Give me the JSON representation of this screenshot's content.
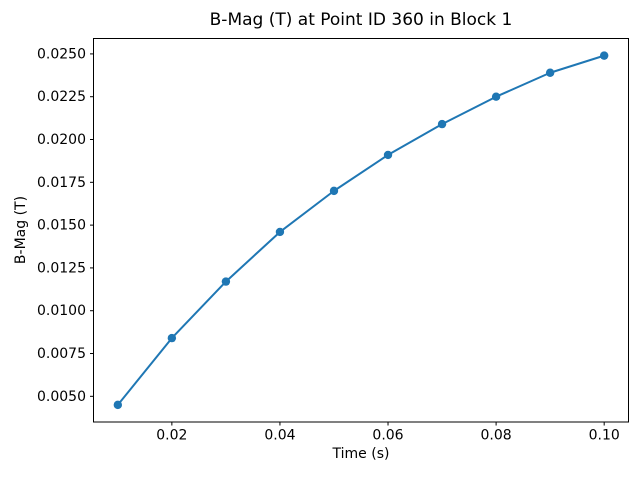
{
  "chart_data": {
    "type": "line",
    "title": "B-Mag (T) at Point ID 360 in Block 1",
    "xlabel": "Time (s)",
    "ylabel": "B-Mag (T)",
    "x": [
      0.01,
      0.02,
      0.03,
      0.04,
      0.05,
      0.06,
      0.07,
      0.08,
      0.09,
      0.1
    ],
    "y": [
      0.0045,
      0.0084,
      0.0117,
      0.0146,
      0.017,
      0.0191,
      0.0209,
      0.0225,
      0.0239,
      0.0249
    ],
    "xlim": [
      0.0055,
      0.1045
    ],
    "ylim": [
      0.0035,
      0.0259
    ],
    "xticks": {
      "values": [
        0.02,
        0.04,
        0.06,
        0.08,
        0.1
      ],
      "labels": [
        "0.02",
        "0.04",
        "0.06",
        "0.08",
        "0.10"
      ]
    },
    "yticks": {
      "values": [
        0.005,
        0.0075,
        0.01,
        0.0125,
        0.015,
        0.0175,
        0.02,
        0.0225,
        0.025
      ],
      "labels": [
        "0.0050",
        "0.0075",
        "0.0100",
        "0.0125",
        "0.0150",
        "0.0175",
        "0.0200",
        "0.0225",
        "0.0250"
      ]
    },
    "line_color": "#1f77b4",
    "marker": "circle",
    "grid": false,
    "legend": null
  }
}
